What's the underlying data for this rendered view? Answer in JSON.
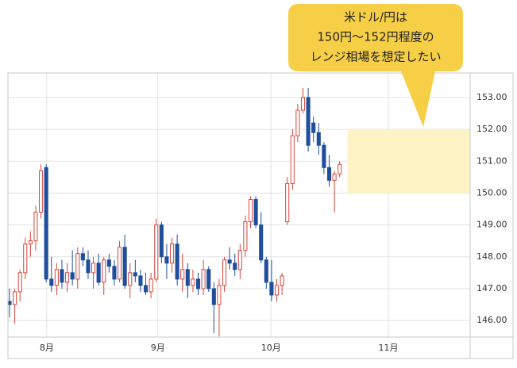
{
  "chart_data": {
    "type": "candlestick",
    "callout": [
      "米ドル/円は",
      "150円～152円程度の",
      "レンジ相場を想定したい"
    ],
    "range": [
      150,
      152
    ],
    "range_color": "#fdf3c4",
    "up_color": "#d9453c",
    "down_color": "#1f4f9c",
    "open": [
      146.6,
      146.5,
      146.9,
      147.5,
      148.4,
      148.5,
      149.4,
      150.8,
      147.3,
      147.1,
      147.6,
      147.2,
      147.5,
      147.3,
      148.1,
      147.9,
      147.5,
      147.8,
      147.2,
      147.9,
      147.7,
      147.3,
      148.3,
      147.1,
      147.5,
      147.4,
      147.1,
      146.9,
      147.3,
      149.0,
      148.0,
      147.8,
      148.4,
      147.3,
      147.6,
      147.1,
      147.3,
      147.0,
      147.6,
      147.0,
      146.5,
      147.1,
      147.9,
      147.8,
      147.6,
      148.2,
      149.1,
      149.8,
      149.0,
      147.9,
      147.2,
      146.8,
      147.1,
      149.1,
      150.3,
      151.8,
      152.6,
      153.0,
      152.2,
      151.9,
      151.5,
      150.8,
      150.4,
      150.6
    ],
    "high": [
      147.0,
      147.0,
      147.6,
      148.6,
      148.8,
      149.6,
      150.9,
      150.9,
      148.0,
      147.8,
      147.9,
      147.8,
      148.2,
      148.3,
      148.3,
      148.2,
      148.0,
      148.1,
      148.0,
      148.1,
      147.9,
      148.5,
      148.7,
      147.8,
      147.9,
      147.6,
      147.5,
      147.5,
      149.2,
      149.1,
      148.4,
      148.6,
      148.7,
      148.1,
      147.8,
      147.6,
      147.5,
      147.9,
      147.7,
      147.2,
      147.3,
      148.0,
      148.3,
      148.1,
      148.4,
      149.3,
      149.9,
      149.9,
      149.4,
      148.0,
      147.9,
      147.3,
      147.5,
      150.5,
      152.0,
      152.8,
      153.3,
      153.3,
      152.4,
      152.2,
      151.6,
      151.2,
      150.7,
      151.0
    ],
    "low": [
      146.1,
      145.9,
      146.6,
      147.3,
      148.0,
      148.2,
      149.2,
      147.2,
      146.9,
      146.8,
      147.0,
      146.9,
      147.1,
      147.0,
      147.7,
      147.3,
      147.0,
      147.1,
      146.8,
      147.5,
      147.1,
      147.2,
      147.0,
      146.7,
      147.2,
      146.9,
      146.8,
      146.7,
      147.2,
      147.8,
      147.3,
      147.5,
      147.1,
      146.9,
      146.7,
      146.9,
      146.8,
      146.8,
      146.9,
      145.6,
      145.5,
      146.9,
      147.6,
      147.4,
      147.3,
      148.0,
      148.9,
      148.9,
      147.8,
      147.0,
      146.6,
      146.6,
      146.8,
      149.0,
      150.1,
      151.6,
      152.5,
      151.3,
      151.6,
      151.2,
      150.6,
      150.2,
      149.4,
      150.5
    ],
    "close": [
      146.5,
      146.9,
      147.5,
      148.4,
      148.5,
      149.4,
      150.7,
      147.3,
      147.1,
      147.6,
      147.2,
      147.5,
      147.3,
      148.1,
      147.9,
      147.5,
      147.8,
      147.2,
      147.9,
      147.7,
      147.3,
      148.3,
      147.1,
      147.5,
      147.4,
      147.1,
      146.9,
      147.3,
      149.0,
      148.0,
      147.8,
      148.4,
      147.3,
      147.6,
      147.1,
      147.3,
      147.0,
      147.6,
      147.0,
      146.5,
      147.1,
      147.9,
      147.8,
      147.6,
      148.2,
      149.1,
      149.8,
      149.0,
      147.9,
      147.2,
      146.8,
      147.1,
      147.4,
      150.3,
      151.8,
      152.6,
      153.0,
      151.5,
      151.9,
      151.5,
      150.8,
      150.4,
      150.6,
      150.9
    ],
    "xlim": [
      -0.3,
      87.9
    ],
    "xticks": [
      {
        "value": 7.1,
        "label": "8月"
      },
      {
        "value": 28.3,
        "label": "9月"
      },
      {
        "value": 49.9,
        "label": "10月"
      },
      {
        "value": 72.3,
        "label": "11月"
      }
    ],
    "ylim": [
      145.48,
      153.77
    ],
    "yticks": [
      {
        "value": 146,
        "label": "146.00"
      },
      {
        "value": 147,
        "label": "147.00"
      },
      {
        "value": 148,
        "label": "148.00"
      },
      {
        "value": 149,
        "label": "149.00"
      },
      {
        "value": 150,
        "label": "150.00"
      },
      {
        "value": 151,
        "label": "151.00"
      },
      {
        "value": 152,
        "label": "152.00"
      },
      {
        "value": 153,
        "label": "153.00"
      }
    ],
    "grid": true
  }
}
